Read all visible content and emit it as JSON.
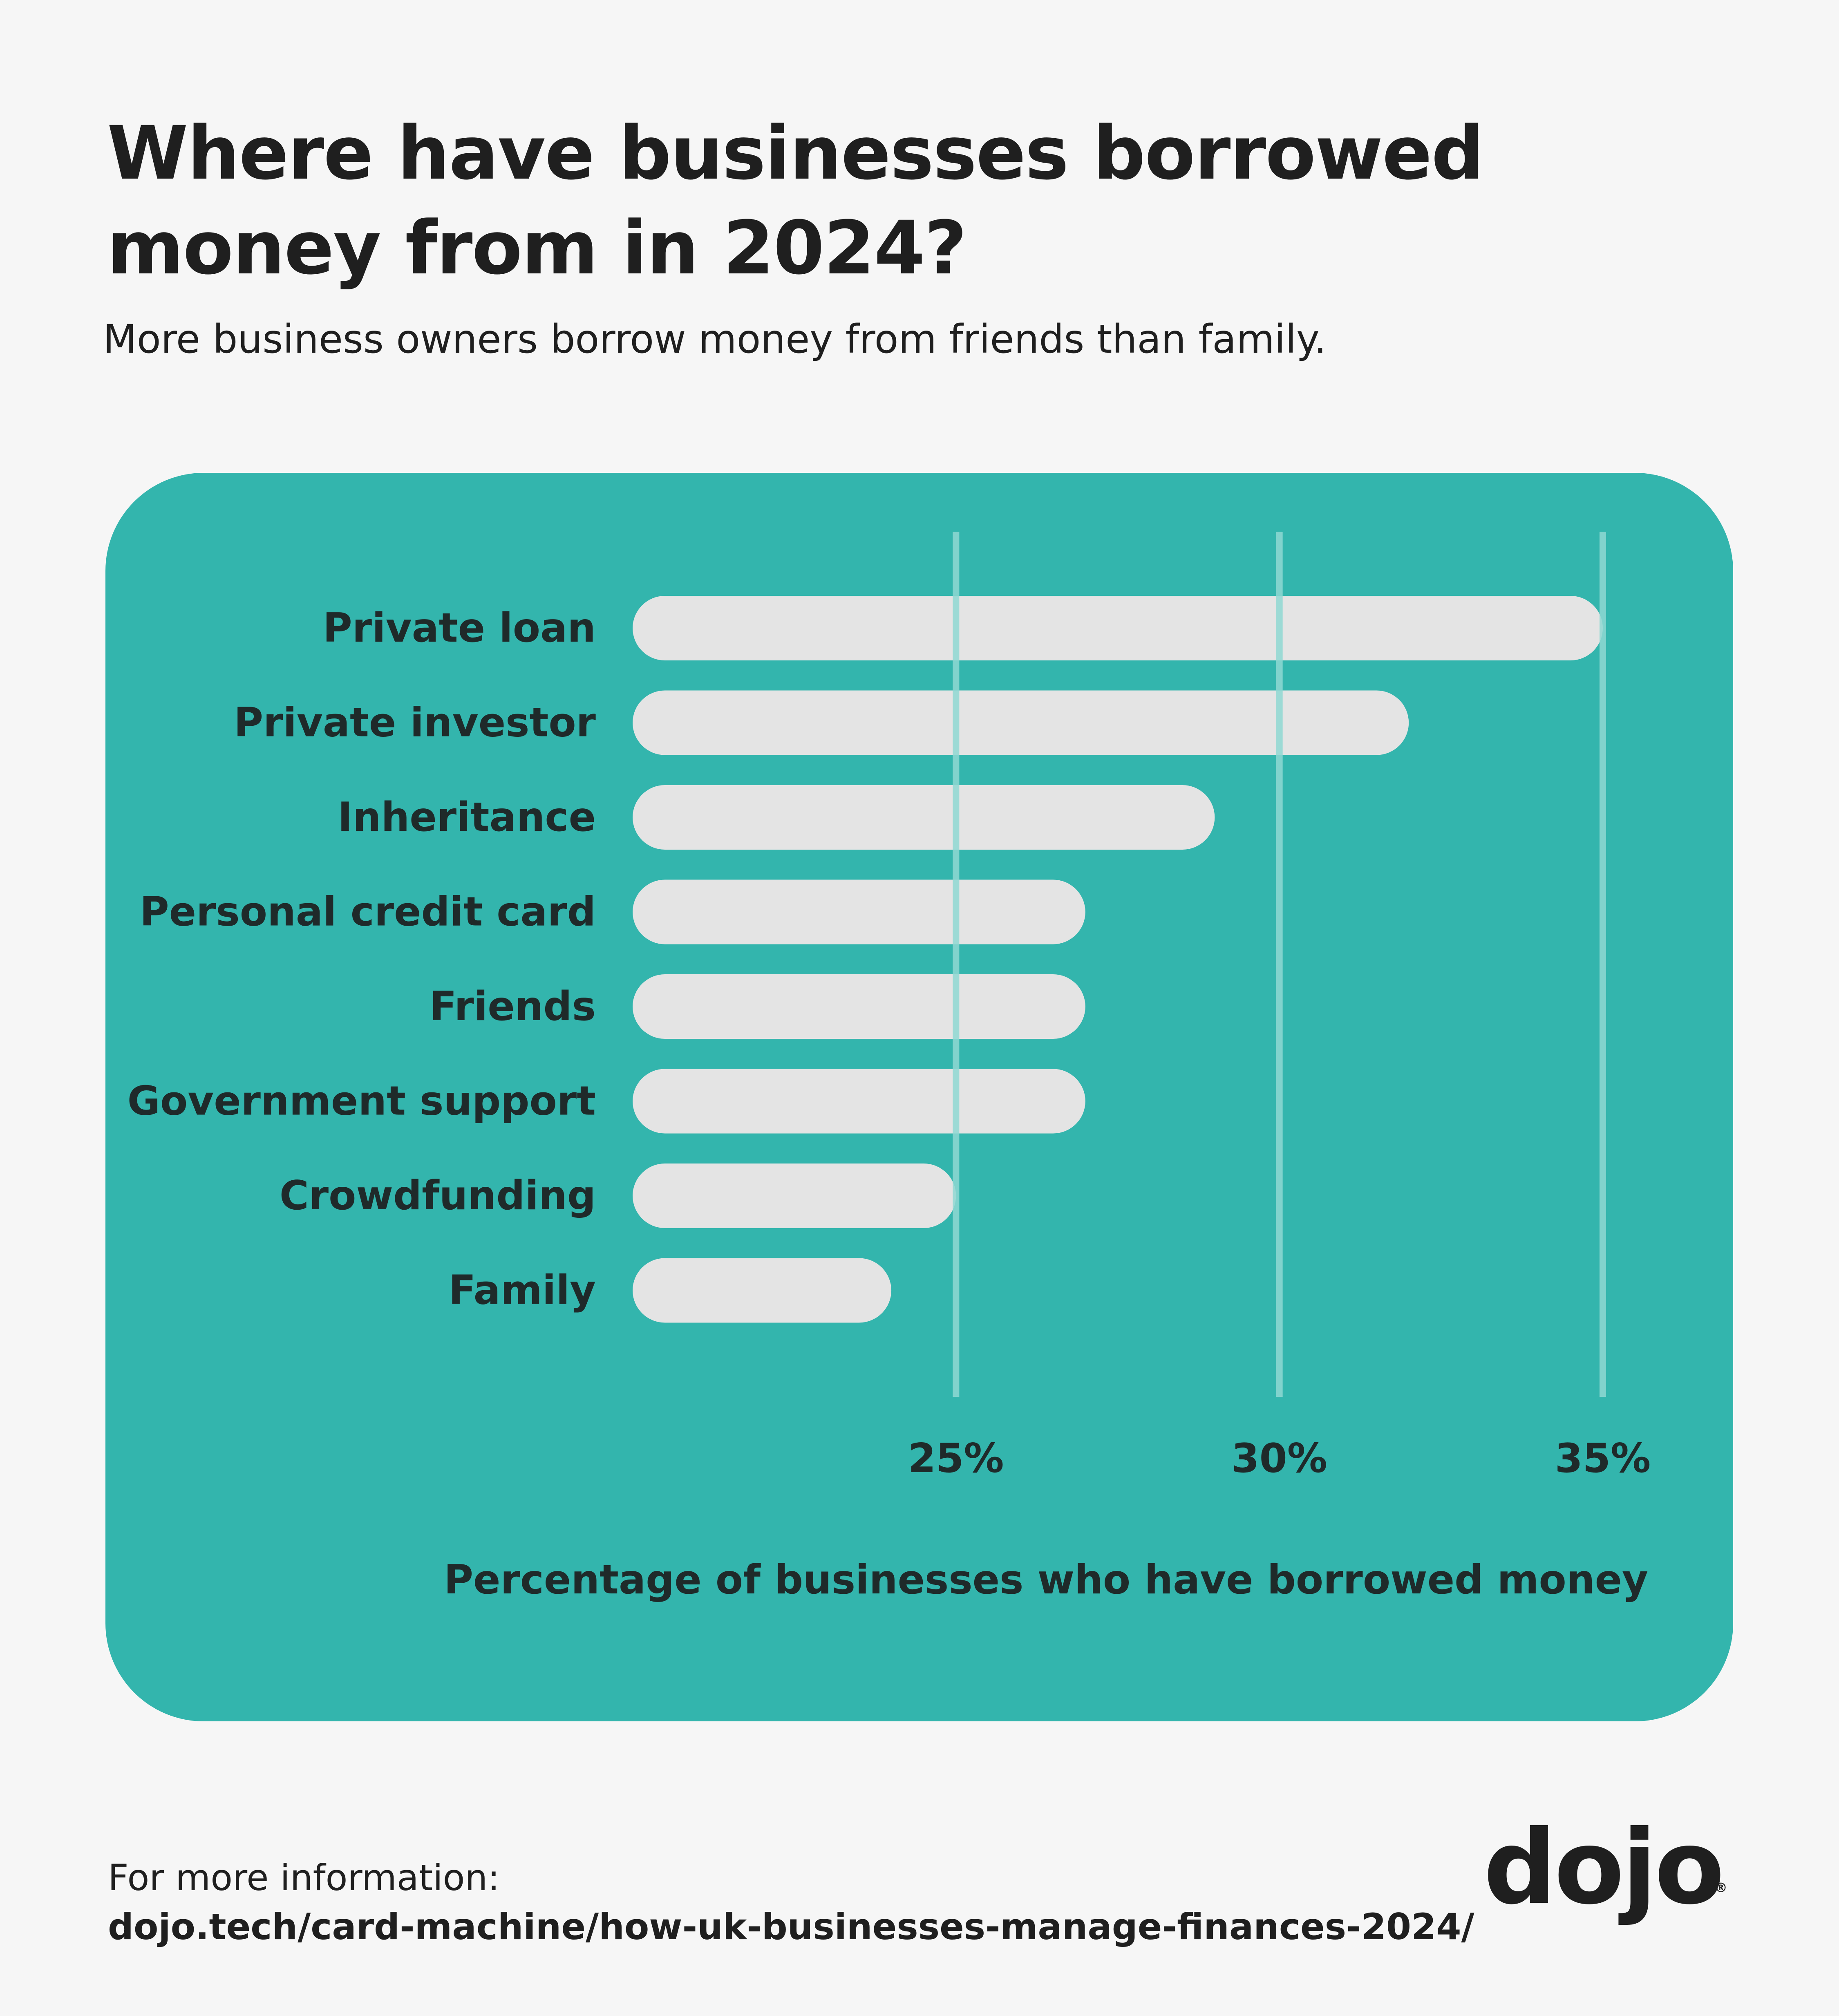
{
  "header": {
    "title": "Where have businesses borrowed money from in 2024?",
    "subtitle": "More business owners borrow money from friends than family."
  },
  "chart_data": {
    "type": "bar",
    "orientation": "horizontal",
    "categories": [
      "Private loan",
      "Private investor",
      "Inheritance",
      "Personal credit card",
      "Friends",
      "Government support",
      "Crowdfunding",
      "Family"
    ],
    "values": [
      35,
      32,
      29,
      27,
      27,
      27,
      25,
      24
    ],
    "xlabel": "Percentage of businesses who have borrowed money",
    "xticks": [
      25,
      30,
      35
    ],
    "tick_labels": [
      "25%",
      "30%",
      "35%"
    ],
    "xlim": [
      20,
      35
    ],
    "grid": true,
    "colors": {
      "panel": "#33b5ad",
      "bar": "#e4e4e4",
      "gridline": "#8fd8d2",
      "text": "#1f2a2a"
    }
  },
  "footer": {
    "label": "For more information:",
    "link": "dojo.tech/card-machine/how-uk-businesses-manage-finances-2024/"
  },
  "logo": {
    "text": "dojo",
    "mark": "®"
  }
}
